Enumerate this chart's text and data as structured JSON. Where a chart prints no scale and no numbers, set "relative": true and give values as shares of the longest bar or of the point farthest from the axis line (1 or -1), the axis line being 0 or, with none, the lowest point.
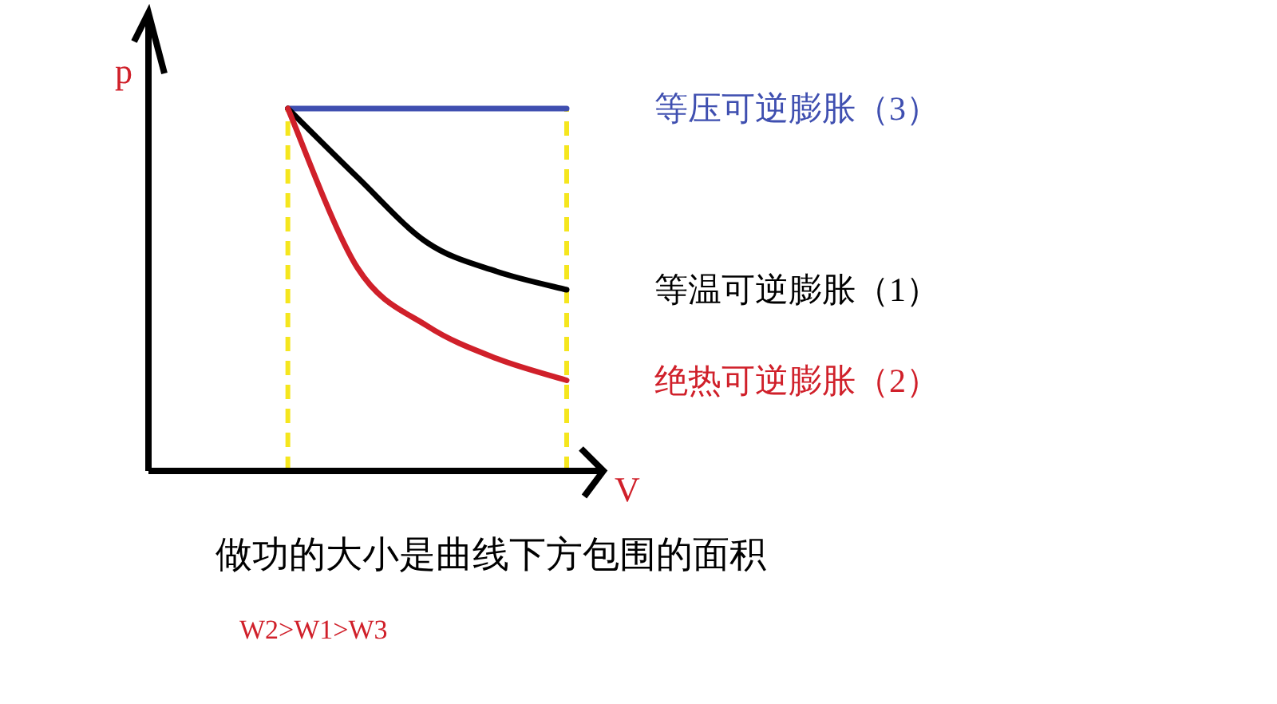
{
  "chart_data": {
    "type": "line",
    "relative": true,
    "xlabel": "V",
    "ylabel": "p",
    "categories": [
      null,
      null,
      null,
      null,
      null,
      null,
      null
    ],
    "series": [
      {
        "name": "等压可逆膨胀（3）",
        "color": "#3f4fb0",
        "values": [
          null,
          null,
          1,
          1,
          1,
          1,
          1
        ]
      },
      {
        "name": "等温可逆膨胀（1）",
        "color": "#000000",
        "values": [
          null,
          null,
          1,
          0.81,
          0.63,
          0.55,
          0.5
        ]
      },
      {
        "name": "绝热可逆膨胀（2）",
        "color": "#d0202a",
        "values": [
          null,
          null,
          1,
          0.56,
          0.4,
          0.31,
          0.25
        ]
      }
    ],
    "annotations": [
      "做功的大小是曲线下方包围的面积",
      "W2>W1>W3"
    ]
  }
}
